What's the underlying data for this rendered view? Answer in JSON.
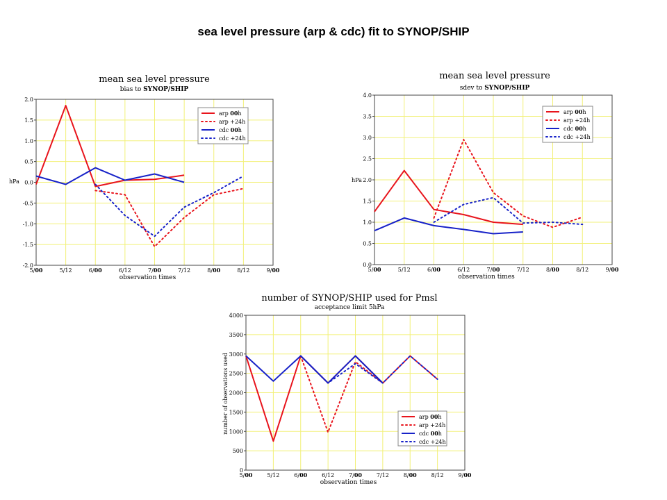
{
  "slide": {
    "title": "sea level pressure  (arp & cdc) fit to SYNOP/SHIP"
  },
  "colors": {
    "arp": "#e8141c",
    "cdc": "#1722c8",
    "grid": "#f2f078",
    "frame": "#444444"
  },
  "chart_data": [
    {
      "type": "line",
      "title": "mean sea level pressure",
      "subtitle_prefix": "bias to ",
      "subtitle_bold": "SYNOP/SHIP",
      "xlabel": "observation times",
      "ylabel": "hPa",
      "categories": [
        {
          "main": "5/",
          "bold": "00"
        },
        {
          "main": "5/12",
          "bold": ""
        },
        {
          "main": "6/",
          "bold": "00"
        },
        {
          "main": "6/12",
          "bold": ""
        },
        {
          "main": "7/",
          "bold": "00"
        },
        {
          "main": "7/12",
          "bold": ""
        },
        {
          "main": "8/",
          "bold": "00"
        },
        {
          "main": "8/12",
          "bold": ""
        },
        {
          "main": "9/",
          "bold": "00"
        }
      ],
      "ylim": [
        -2.0,
        2.0
      ],
      "yticks": [
        2.0,
        1.5,
        1.0,
        0.5,
        0.0,
        -0.5,
        -1.0,
        -1.5,
        -2.0
      ],
      "ytick_labels": [
        "2.0",
        "1.5",
        "1.0",
        "0.5",
        "0.0",
        "-0.5",
        "-1.0",
        "-1.5",
        "-2.0"
      ],
      "grid": true,
      "legend_position": "top-right",
      "series": [
        {
          "name": "arp 00h",
          "legend_main": "arp ",
          "legend_bold": "00",
          "legend_tail": "h",
          "color": "arp",
          "style": "solid",
          "x": [
            0,
            1,
            2,
            3,
            4,
            5
          ],
          "y": [
            -0.05,
            1.85,
            -0.1,
            0.05,
            0.07,
            0.17
          ]
        },
        {
          "name": "arp +24h",
          "legend_main": "arp +24h",
          "legend_bold": "",
          "legend_tail": "",
          "color": "arp",
          "style": "dotted",
          "x": [
            2,
            3,
            4,
            5,
            6,
            7
          ],
          "y": [
            -0.2,
            -0.3,
            -1.55,
            -0.85,
            -0.3,
            -0.15
          ]
        },
        {
          "name": "cdc 00h",
          "legend_main": "cdc ",
          "legend_bold": "00",
          "legend_tail": "h",
          "color": "cdc",
          "style": "solid",
          "x": [
            0,
            1,
            2,
            3,
            4,
            5
          ],
          "y": [
            0.15,
            -0.05,
            0.35,
            0.05,
            0.2,
            0.0
          ]
        },
        {
          "name": "cdc +24h",
          "legend_main": "cdc +24h",
          "legend_bold": "",
          "legend_tail": "",
          "color": "cdc",
          "style": "dotted",
          "x": [
            2,
            3,
            4,
            5,
            6,
            7
          ],
          "y": [
            -0.05,
            -0.8,
            -1.3,
            -0.6,
            -0.25,
            0.15
          ]
        }
      ]
    },
    {
      "type": "line",
      "title": "mean sea level pressure",
      "subtitle_prefix": "sdev to ",
      "subtitle_bold": "SYNOP/SHIP",
      "xlabel": "observation times",
      "ylabel": "hPa",
      "categories": [
        {
          "main": "5/",
          "bold": "00"
        },
        {
          "main": "5/12",
          "bold": ""
        },
        {
          "main": "6/",
          "bold": "00"
        },
        {
          "main": "6/12",
          "bold": ""
        },
        {
          "main": "7/",
          "bold": "00"
        },
        {
          "main": "7/12",
          "bold": ""
        },
        {
          "main": "8/",
          "bold": "00"
        },
        {
          "main": "8/12",
          "bold": ""
        },
        {
          "main": "9/",
          "bold": "00"
        }
      ],
      "ylim": [
        0.0,
        4.0
      ],
      "yticks": [
        4.0,
        3.5,
        3.0,
        2.5,
        2.0,
        1.5,
        1.0,
        0.5,
        0.0
      ],
      "ytick_labels": [
        "4.0",
        "3.5",
        "3.0",
        "2.5",
        "2.0",
        "1.5",
        "1.0",
        "0.5",
        "0.0"
      ],
      "grid": true,
      "legend_position": "top-right",
      "series": [
        {
          "name": "arp 00h",
          "legend_main": "arp ",
          "legend_bold": "00",
          "legend_tail": "h",
          "color": "arp",
          "style": "solid",
          "x": [
            0,
            1,
            2,
            3,
            4,
            5
          ],
          "y": [
            1.25,
            2.22,
            1.3,
            1.18,
            1.0,
            0.95
          ]
        },
        {
          "name": "arp +24h",
          "legend_main": "arp +24h",
          "legend_bold": "",
          "legend_tail": "",
          "color": "arp",
          "style": "dotted",
          "x": [
            2,
            3,
            4,
            5,
            6,
            7
          ],
          "y": [
            1.1,
            2.95,
            1.7,
            1.15,
            0.88,
            1.12
          ]
        },
        {
          "name": "cdc 00h",
          "legend_main": "cdc ",
          "legend_bold": "00",
          "legend_tail": "h",
          "color": "cdc",
          "style": "solid",
          "x": [
            0,
            1,
            2,
            3,
            4,
            5
          ],
          "y": [
            0.8,
            1.1,
            0.92,
            0.83,
            0.73,
            0.77
          ]
        },
        {
          "name": "cdc +24h",
          "legend_main": "cdc +24h",
          "legend_bold": "",
          "legend_tail": "",
          "color": "cdc",
          "style": "dotted",
          "x": [
            2,
            3,
            4,
            5,
            6,
            7
          ],
          "y": [
            1.0,
            1.42,
            1.58,
            0.98,
            1.0,
            0.95
          ]
        }
      ]
    },
    {
      "type": "line",
      "title": "number of SYNOP/SHIP used for Pmsl",
      "subtitle_prefix": "acceptance limit 5hPa",
      "subtitle_bold": "",
      "xlabel": "observation times",
      "ylabel": "number of observations used",
      "categories": [
        {
          "main": "5/",
          "bold": "00"
        },
        {
          "main": "5/12",
          "bold": ""
        },
        {
          "main": "6/",
          "bold": "00"
        },
        {
          "main": "6/12",
          "bold": ""
        },
        {
          "main": "7/",
          "bold": "00"
        },
        {
          "main": "7/12",
          "bold": ""
        },
        {
          "main": "8/",
          "bold": "00"
        },
        {
          "main": "8/12",
          "bold": ""
        },
        {
          "main": "9/",
          "bold": "00"
        }
      ],
      "ylim": [
        0,
        4000
      ],
      "yticks": [
        4000,
        3500,
        3000,
        2500,
        2000,
        1500,
        1000,
        500,
        0
      ],
      "ytick_labels": [
        "4000",
        "3500",
        "3000",
        "2500",
        "2000",
        "1500",
        "1000",
        "500",
        "0"
      ],
      "grid": true,
      "legend_position": "bottom-right",
      "series": [
        {
          "name": "arp 00h",
          "legend_main": "arp ",
          "legend_bold": "00",
          "legend_tail": "h",
          "color": "arp",
          "style": "solid",
          "x": [
            0,
            1,
            2,
            3,
            4,
            5
          ],
          "y": [
            2950,
            750,
            2950,
            2250,
            2950,
            2250
          ]
        },
        {
          "name": "arp +24h",
          "legend_main": "arp +24h",
          "legend_bold": "",
          "legend_tail": "",
          "color": "arp",
          "style": "dotted",
          "x": [
            2,
            3,
            4,
            5,
            6,
            7
          ],
          "y": [
            2950,
            980,
            2800,
            2250,
            2950,
            2350
          ]
        },
        {
          "name": "cdc 00h",
          "legend_main": "cdc ",
          "legend_bold": "00",
          "legend_tail": "h",
          "color": "cdc",
          "style": "solid",
          "x": [
            0,
            1,
            2,
            3,
            4,
            5
          ],
          "y": [
            2950,
            2300,
            2950,
            2250,
            2950,
            2250
          ]
        },
        {
          "name": "cdc +24h",
          "legend_main": "cdc +24h",
          "legend_bold": "",
          "legend_tail": "",
          "color": "cdc",
          "style": "dotted",
          "x": [
            2,
            3,
            4,
            5,
            6,
            7
          ],
          "y": [
            2950,
            2250,
            2750,
            2250,
            2950,
            2350
          ]
        }
      ]
    }
  ]
}
